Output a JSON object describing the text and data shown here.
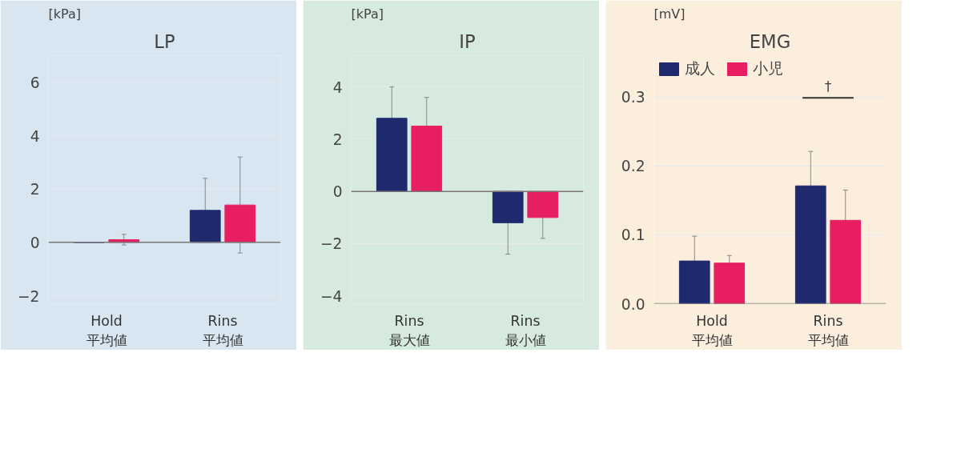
{
  "chart_data": [
    {
      "type": "bar",
      "title": "LP",
      "ylabel": "[kPa]",
      "categories": [
        "Hold\n平均値",
        "Rins\n平均値"
      ],
      "series": [
        {
          "color": "#1f2a6e",
          "values": [
            0.0,
            1.2
          ],
          "errors": [
            null,
            1.2
          ]
        },
        {
          "color": "#e81e63",
          "values": [
            0.1,
            1.4
          ],
          "errors": [
            0.2,
            1.8
          ]
        }
      ],
      "ylim": [
        -2.3,
        7
      ],
      "yticks": [
        -2,
        0,
        2,
        4,
        6
      ],
      "grid": "y"
    },
    {
      "type": "bar",
      "title": "IP",
      "ylabel": "[kPa]",
      "categories": [
        "Rins\n最大値",
        "Rins\n最小値"
      ],
      "series": [
        {
          "color": "#1f2a6e",
          "values": [
            2.8,
            -1.2
          ],
          "errors": [
            1.2,
            1.2
          ]
        },
        {
          "color": "#e81e63",
          "values": [
            2.5,
            -1.0
          ],
          "errors": [
            1.1,
            0.8
          ]
        }
      ],
      "ylim": [
        -4.3,
        5.2
      ],
      "yticks": [
        -4,
        -2,
        0,
        2,
        4
      ],
      "grid": "y"
    },
    {
      "type": "bar",
      "title": "EMG",
      "ylabel": "[mV]",
      "categories": [
        "Hold\n平均値",
        "Rins\n平均値"
      ],
      "series": [
        {
          "name": "成人",
          "color": "#1f2a6e",
          "values": [
            0.062,
            0.171
          ],
          "errors": [
            0.036,
            0.05
          ]
        },
        {
          "name": "小児",
          "color": "#e81e63",
          "values": [
            0.059,
            0.121
          ],
          "errors": [
            0.011,
            0.044
          ]
        }
      ],
      "ylim": [
        0,
        0.36
      ],
      "yticks": [
        {
          "value": 0,
          "label": "0.0"
        },
        0.1,
        0.2,
        0.3
      ],
      "grid": "y",
      "annotations": [
        "†"
      ],
      "legend": "top left"
    }
  ]
}
